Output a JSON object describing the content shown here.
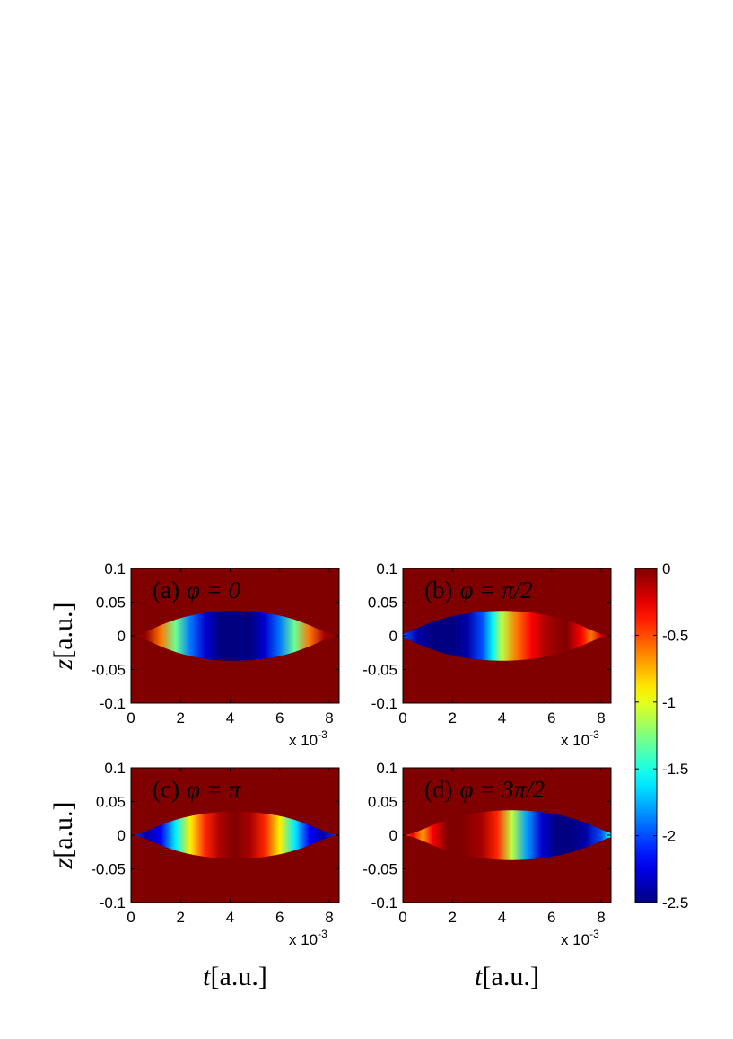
{
  "chart_data": {
    "type": "heatmap",
    "colormap": "jet",
    "colorbar": {
      "range": [
        -2.5,
        0
      ],
      "ticks": [
        0,
        -0.5,
        -1,
        -1.5,
        -2,
        -2.5
      ],
      "tick_labels": [
        "0",
        "-0.5",
        "-1",
        "-1.5",
        "-2",
        "-2.5"
      ]
    },
    "x_axis": {
      "label": "t[a.u.]",
      "label_var": "t",
      "label_unit": "[a.u.]",
      "range": [
        0,
        8.4
      ],
      "ticks": [
        0,
        2,
        4,
        6,
        8
      ],
      "tick_labels": [
        "0",
        "2",
        "4",
        "6",
        "8"
      ],
      "multiplier": "x 10",
      "multiplier_exp": "-3"
    },
    "y_axis": {
      "label": "z[a.u.]",
      "label_var": "z",
      "label_unit": "[a.u.]",
      "range": [
        -0.1,
        0.1
      ],
      "ticks": [
        0.1,
        0.05,
        0,
        -0.05,
        -0.1
      ],
      "tick_labels": [
        "0.1",
        "0.05",
        "0",
        "-0.05",
        "-0.1"
      ]
    },
    "panels": [
      {
        "id": "a",
        "letter": "(a)",
        "phi_text": "φ = 0",
        "envelope_halfwidth": 0.037,
        "envelope_center_t": 4.2,
        "profile": [
          [
            0,
            0
          ],
          [
            0.6,
            -0.05
          ],
          [
            1.2,
            -0.6
          ],
          [
            1.8,
            -1.3
          ],
          [
            2.4,
            -1.9
          ],
          [
            3.0,
            -2.3
          ],
          [
            3.6,
            -2.5
          ],
          [
            4.2,
            -2.55
          ],
          [
            4.8,
            -2.5
          ],
          [
            5.4,
            -2.3
          ],
          [
            6.0,
            -1.9
          ],
          [
            6.6,
            -1.3
          ],
          [
            7.2,
            -0.6
          ],
          [
            7.8,
            -0.1
          ],
          [
            8.4,
            0
          ]
        ]
      },
      {
        "id": "b",
        "letter": "(b)",
        "phi_text": "φ = π/2",
        "envelope_halfwidth": 0.037,
        "envelope_center_t": 4.0,
        "profile": [
          [
            0,
            -2.0
          ],
          [
            0.6,
            -2.4
          ],
          [
            1.2,
            -2.5
          ],
          [
            2.0,
            -2.5
          ],
          [
            2.6,
            -2.4
          ],
          [
            3.2,
            -2.0
          ],
          [
            3.6,
            -1.6
          ],
          [
            4.0,
            -1.1
          ],
          [
            4.6,
            -0.6
          ],
          [
            5.2,
            -0.3
          ],
          [
            5.8,
            -0.1
          ],
          [
            6.6,
            0
          ],
          [
            7.2,
            -0.3
          ],
          [
            7.6,
            -0.6
          ],
          [
            8.0,
            -0.2
          ],
          [
            8.4,
            0
          ]
        ]
      },
      {
        "id": "c",
        "letter": "(c)",
        "phi_text": "φ = π",
        "envelope_halfwidth": 0.035,
        "envelope_center_t": 4.2,
        "profile": [
          [
            0,
            -2.0
          ],
          [
            0.6,
            -2.4
          ],
          [
            1.2,
            -2.2
          ],
          [
            1.8,
            -1.6
          ],
          [
            2.4,
            -0.9
          ],
          [
            3.0,
            -0.4
          ],
          [
            3.6,
            -0.1
          ],
          [
            4.2,
            0
          ],
          [
            4.8,
            -0.1
          ],
          [
            5.4,
            -0.4
          ],
          [
            6.0,
            -0.9
          ],
          [
            6.6,
            -1.6
          ],
          [
            7.2,
            -2.2
          ],
          [
            7.8,
            -2.4
          ],
          [
            8.4,
            -2.0
          ]
        ]
      },
      {
        "id": "d",
        "letter": "(d)",
        "phi_text": "φ = 3π/2",
        "envelope_halfwidth": 0.037,
        "envelope_center_t": 4.4,
        "profile": [
          [
            0,
            -0.6
          ],
          [
            0.4,
            -0.3
          ],
          [
            0.8,
            -0.7
          ],
          [
            1.2,
            -0.3
          ],
          [
            1.8,
            0
          ],
          [
            2.4,
            0
          ],
          [
            3.2,
            -0.1
          ],
          [
            3.8,
            -0.4
          ],
          [
            4.4,
            -1.1
          ],
          [
            5.0,
            -1.8
          ],
          [
            5.6,
            -2.3
          ],
          [
            6.2,
            -2.5
          ],
          [
            6.8,
            -2.5
          ],
          [
            7.4,
            -2.4
          ],
          [
            8.0,
            -2.0
          ],
          [
            8.4,
            -1.5
          ]
        ]
      }
    ]
  }
}
